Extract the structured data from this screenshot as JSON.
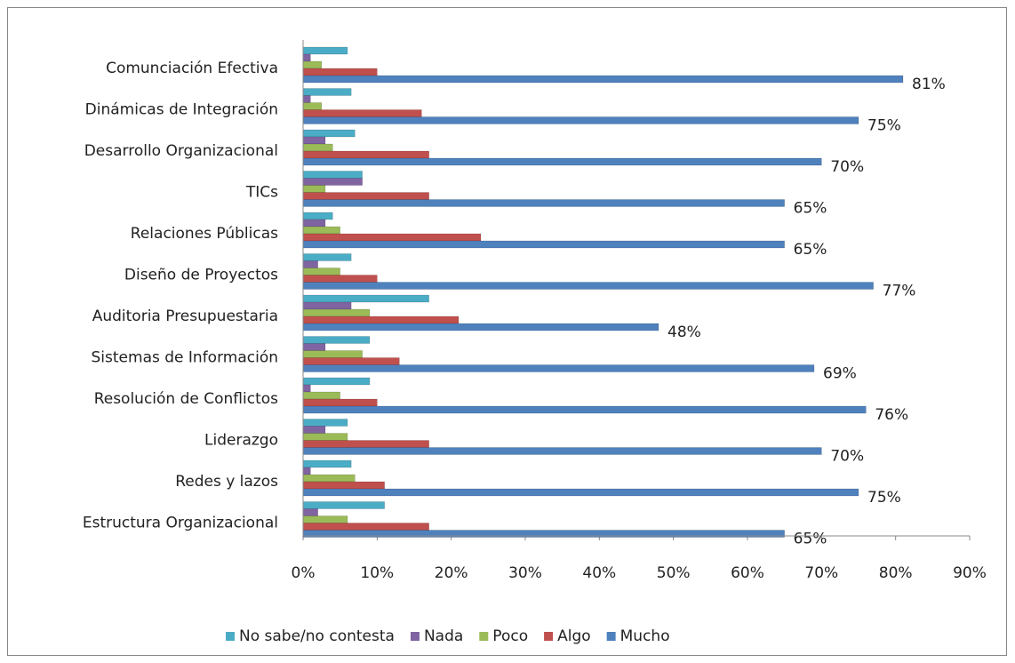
{
  "chart_data": {
    "type": "barh",
    "categories": [
      "Comunciación Efectiva",
      "Dinámicas de Integración",
      "Desarrollo Organizacional",
      "TICs",
      "Relaciones Públicas",
      "Diseño de Proyectos",
      "Auditoria Presupuestaria",
      "Sistemas de Información",
      "Resolución de Conflictos",
      "Liderazgo",
      "Redes y lazos",
      "Estructura Organizacional"
    ],
    "series": [
      {
        "name": "No sabe/no contesta",
        "color": "#4bacc6",
        "values": [
          6,
          6.5,
          7,
          8,
          4,
          6.5,
          17,
          9,
          9,
          6,
          6.5,
          11
        ]
      },
      {
        "name": "Nada",
        "color": "#8064a2",
        "values": [
          1,
          1,
          3,
          8,
          3,
          2,
          6.5,
          3,
          1,
          3,
          1,
          2
        ]
      },
      {
        "name": "Poco",
        "color": "#9bbb59",
        "values": [
          2.5,
          2.5,
          4,
          3,
          5,
          5,
          9,
          8,
          5,
          6,
          7,
          6
        ]
      },
      {
        "name": "Algo",
        "color": "#c0504d",
        "values": [
          10,
          16,
          17,
          17,
          24,
          10,
          21,
          13,
          10,
          17,
          11,
          17
        ]
      },
      {
        "name": "Mucho",
        "color": "#4f81bd",
        "values": [
          81,
          75,
          70,
          65,
          65,
          77,
          48,
          69,
          76,
          70,
          75,
          65
        ],
        "value_labels": [
          "81%",
          "75%",
          "70%",
          "65%",
          "65%",
          "77%",
          "48%",
          "69%",
          "76%",
          "70%",
          "75%",
          "65%"
        ]
      }
    ],
    "xlim": [
      0,
      90
    ],
    "xticks": [
      {
        "value": 0,
        "label": "0%"
      },
      {
        "value": 10,
        "label": "10%"
      },
      {
        "value": 20,
        "label": "20%"
      },
      {
        "value": 30,
        "label": "30%"
      },
      {
        "value": 40,
        "label": "40%"
      },
      {
        "value": 50,
        "label": "50%"
      },
      {
        "value": 60,
        "label": "60%"
      },
      {
        "value": 70,
        "label": "70%"
      },
      {
        "value": 80,
        "label": "80%"
      },
      {
        "value": 90,
        "label": "90%"
      }
    ],
    "grid": false,
    "legend": "bottom"
  }
}
